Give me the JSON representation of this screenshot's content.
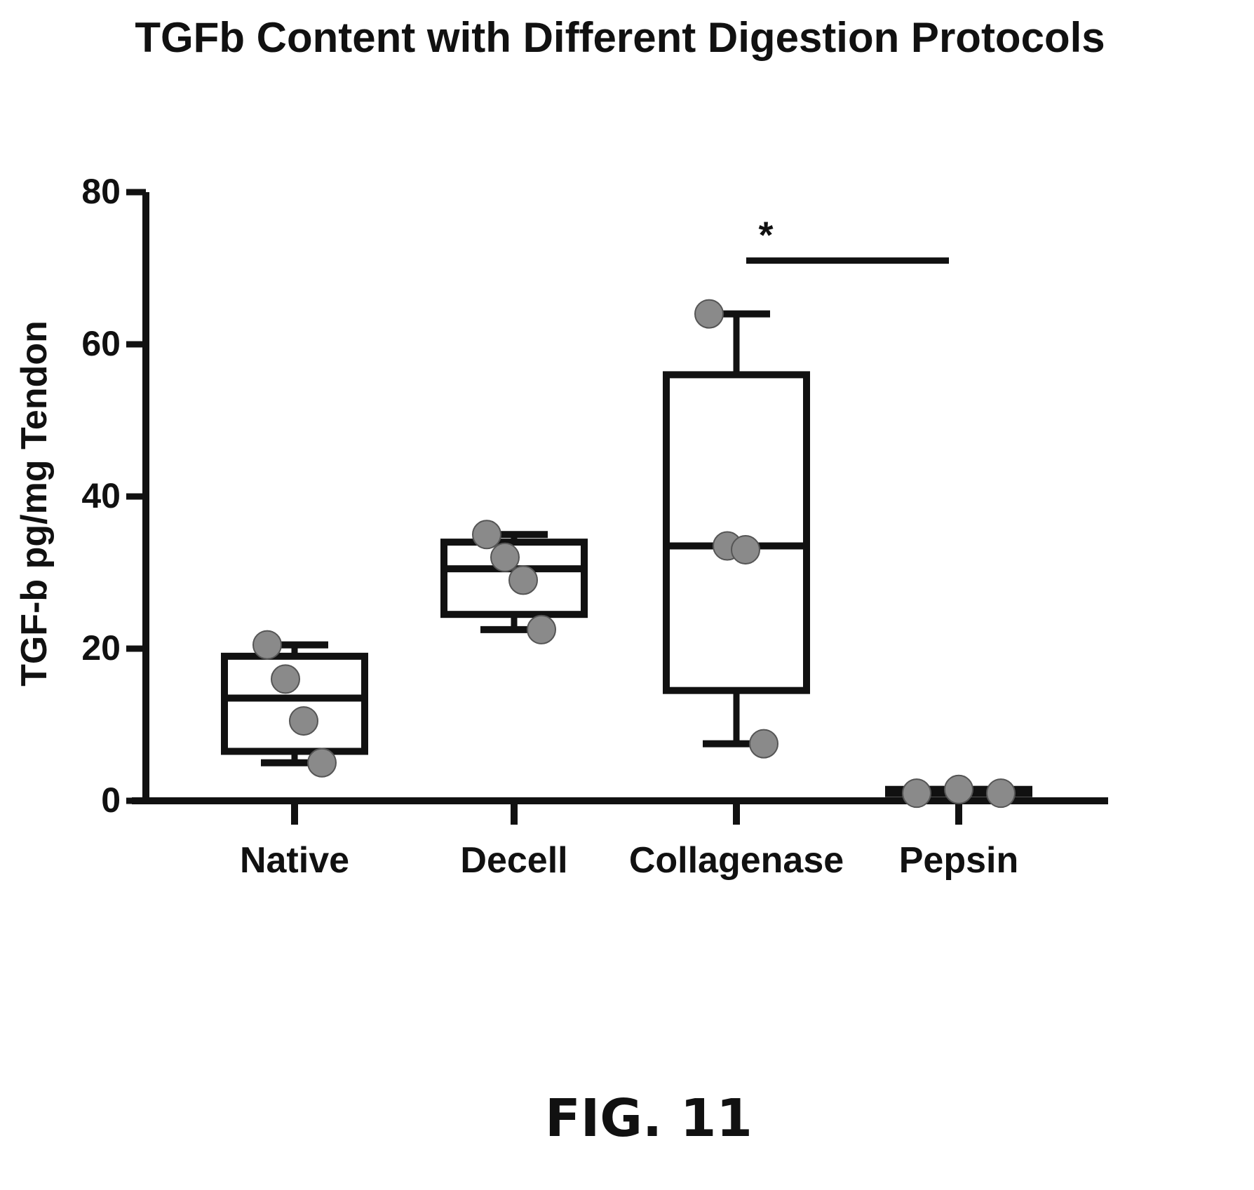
{
  "figure_label": "FIG. 11",
  "colors": {
    "ink": "#111111",
    "marker": "#8a8a8a",
    "background": "#ffffff"
  },
  "chart_data": {
    "type": "box",
    "title": "TGFb Content with Different Digestion Protocols",
    "xlabel": "",
    "ylabel": "TGF-b pg/mg Tendon",
    "ylim": [
      0,
      80
    ],
    "yticks": [
      0,
      20,
      40,
      60,
      80
    ],
    "grid": false,
    "categories": [
      "Native",
      "Decell",
      "Collagenase",
      "Pepsin"
    ],
    "boxes": [
      {
        "category": "Native",
        "min": 5,
        "q1": 6.5,
        "median": 13.5,
        "q3": 19,
        "max": 20.5,
        "points": [
          20.5,
          16,
          10.5,
          5
        ]
      },
      {
        "category": "Decell",
        "min": 22.5,
        "q1": 24.5,
        "median": 30.5,
        "q3": 34,
        "max": 35,
        "points": [
          35,
          32,
          29,
          22.5
        ]
      },
      {
        "category": "Collagenase",
        "min": 7.5,
        "q1": 14.5,
        "median": 33.5,
        "q3": 56,
        "max": 64,
        "points": [
          64,
          33.5,
          33,
          7.5
        ]
      },
      {
        "category": "Pepsin",
        "min": 1,
        "q1": 1,
        "median": 1,
        "q3": 1.5,
        "max": 1.5,
        "points": [
          1,
          1.5,
          1
        ]
      }
    ],
    "annotations": [
      {
        "text": "*",
        "between": [
          "Collagenase",
          "Pepsin"
        ],
        "y": 71
      }
    ]
  }
}
